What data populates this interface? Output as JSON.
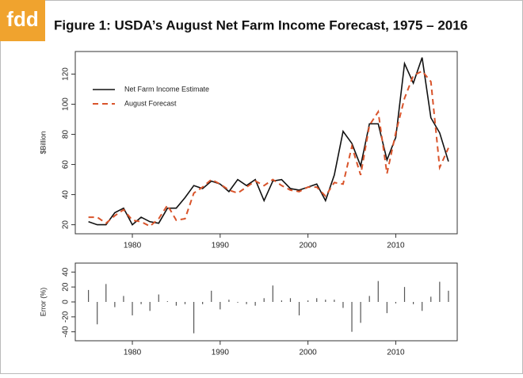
{
  "logo": "fdd",
  "title": "Figure 1: USDA’s August Net Farm Income Forecast, 1975 – 2016",
  "chart_data": [
    {
      "type": "line",
      "ylabel": "$Billion",
      "x": [
        1975,
        1976,
        1977,
        1978,
        1979,
        1980,
        1981,
        1982,
        1983,
        1984,
        1985,
        1986,
        1987,
        1988,
        1989,
        1990,
        1991,
        1992,
        1993,
        1994,
        1995,
        1996,
        1997,
        1998,
        1999,
        2000,
        2001,
        2002,
        2003,
        2004,
        2005,
        2006,
        2007,
        2008,
        2009,
        2010,
        2011,
        2012,
        2013,
        2014,
        2015,
        2016
      ],
      "series": [
        {
          "name": "Net Farm Income Estimate",
          "color": "#111111",
          "line_style": "solid",
          "values": [
            22,
            20,
            20,
            28,
            31,
            20,
            25,
            22,
            21,
            31,
            31,
            38,
            46,
            44,
            49,
            47,
            42,
            50,
            46,
            50,
            36,
            49,
            50,
            44,
            43,
            45,
            47,
            36,
            53,
            82,
            74,
            59,
            87,
            87,
            63,
            78,
            127,
            114,
            131,
            91,
            81,
            62
          ]
        },
        {
          "name": "August Forecast",
          "color": "#d9542b",
          "line_style": "dashed",
          "values": [
            25,
            25,
            21,
            26,
            30,
            23,
            22,
            19,
            24,
            33,
            23,
            24,
            41,
            45,
            50,
            47,
            43,
            41,
            45,
            49,
            46,
            50,
            46,
            43,
            42,
            45,
            45,
            39,
            48,
            47,
            72,
            53,
            86,
            95,
            54,
            81,
            104,
            119,
            122,
            115,
            58,
            71
          ]
        }
      ],
      "xlim": [
        1973.5,
        2017
      ],
      "xticks": [
        1980,
        1990,
        2000,
        2010
      ],
      "ylim": [
        14,
        135
      ],
      "yticks": [
        20,
        40,
        60,
        80,
        100,
        120
      ],
      "legend": "upper-left"
    },
    {
      "type": "bar",
      "ylabel": "Error (%)",
      "x": [
        1975,
        1976,
        1977,
        1978,
        1979,
        1980,
        1981,
        1982,
        1983,
        1984,
        1985,
        1986,
        1987,
        1988,
        1989,
        1990,
        1991,
        1992,
        1993,
        1994,
        1995,
        1996,
        1997,
        1998,
        1999,
        2000,
        2001,
        2002,
        2003,
        2004,
        2005,
        2006,
        2007,
        2008,
        2009,
        2010,
        2011,
        2012,
        2013,
        2014,
        2015,
        2016
      ],
      "values": [
        16,
        -30,
        24,
        -7,
        8,
        -18,
        -3,
        -12,
        10,
        1,
        -5,
        -3,
        -42,
        -3,
        15,
        -10,
        3,
        -1,
        -3,
        -5,
        5,
        22,
        2,
        5,
        -18,
        2,
        5,
        3,
        3,
        -8,
        -40,
        -28,
        8,
        28,
        -15,
        -2,
        20,
        -3,
        -12,
        7,
        27,
        15
      ],
      "color": "#555555",
      "xlim": [
        1973.5,
        2017
      ],
      "xticks": [
        1980,
        1990,
        2000,
        2010
      ],
      "ylim": [
        -52,
        52
      ],
      "yticks": [
        -40,
        -20,
        0,
        20,
        40
      ]
    }
  ]
}
